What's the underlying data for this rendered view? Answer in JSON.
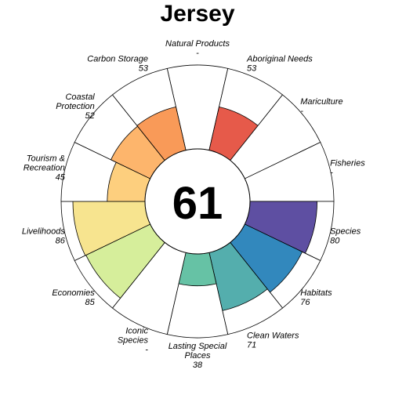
{
  "chart_data": {
    "type": "flower",
    "title": "Jersey",
    "center_score": "61",
    "rlim": [
      0,
      100
    ],
    "petals": [
      {
        "name": "Natural Products",
        "lines": [
          "Natural Products"
        ],
        "value_text": "-",
        "value": null,
        "color": "#ffffff"
      },
      {
        "name": "Aboriginal Needs",
        "lines": [
          "Aboriginal Needs"
        ],
        "value_text": "53",
        "value": 53,
        "color": "#e65a4a"
      },
      {
        "name": "Mariculture",
        "lines": [
          "Mariculture"
        ],
        "value_text": "-",
        "value": null,
        "color": "#ffffff"
      },
      {
        "name": "Fisheries",
        "lines": [
          "Fisheries"
        ],
        "value_text": "-",
        "value": null,
        "color": "#ffffff"
      },
      {
        "name": "Species",
        "lines": [
          "Species"
        ],
        "value_text": "80",
        "value": 80,
        "color": "#5e4fa2"
      },
      {
        "name": "Habitats",
        "lines": [
          "Habitats"
        ],
        "value_text": "76",
        "value": 76,
        "color": "#3288bd"
      },
      {
        "name": "Clean Waters",
        "lines": [
          "Clean Waters"
        ],
        "value_text": "71",
        "value": 71,
        "color": "#54aead"
      },
      {
        "name": "Lasting Special Places",
        "lines": [
          "Lasting Special",
          "Places"
        ],
        "value_text": "38",
        "value": 38,
        "color": "#66c2a5"
      },
      {
        "name": "Iconic Species",
        "lines": [
          "Iconic",
          "Species"
        ],
        "value_text": "-",
        "value": null,
        "color": "#ffffff"
      },
      {
        "name": "Economies",
        "lines": [
          "Economies"
        ],
        "value_text": "85",
        "value": 85,
        "color": "#d6ee9b"
      },
      {
        "name": "Livelihoods",
        "lines": [
          "Livelihoods"
        ],
        "value_text": "86",
        "value": 86,
        "color": "#f7e48f"
      },
      {
        "name": "Tourism & Recreation",
        "lines": [
          "Tourism &",
          "Recreation"
        ],
        "value_text": "45",
        "value": 45,
        "color": "#fdcf7e"
      },
      {
        "name": "Coastal Protection",
        "lines": [
          "Coastal",
          "Protection"
        ],
        "value_text": "52",
        "value": 52,
        "color": "#fdb56c"
      },
      {
        "name": "Carbon Storage",
        "lines": [
          "Carbon Storage"
        ],
        "value_text": "53",
        "value": 53,
        "color": "#f99a58"
      }
    ]
  }
}
